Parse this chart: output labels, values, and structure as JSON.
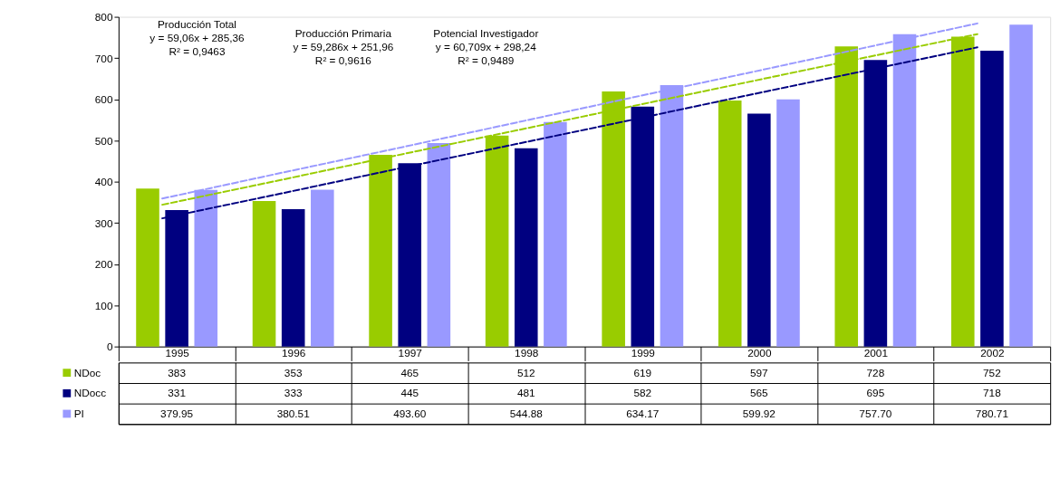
{
  "chart_data": {
    "type": "bar",
    "annotations": [
      "Producción Total\ny = 59,06x + 285,36\nR² = 0,9463",
      "Producción Primaria\ny = 59,286x + 251,96\nR² = 0,9616",
      "Potencial Investigador\ny = 60,709x + 298,24\nR² = 0,9489"
    ],
    "categories": [
      "1995",
      "1996",
      "1997",
      "1998",
      "1999",
      "2000",
      "2001",
      "2002"
    ],
    "series": [
      {
        "name": "NDoc",
        "color": "#99cc00",
        "values": [
          383,
          353,
          465,
          512,
          619,
          597,
          728,
          752
        ],
        "value_labels": [
          "383",
          "353",
          "465",
          "512",
          "619",
          "597",
          "728",
          "752"
        ]
      },
      {
        "name": "NDocc",
        "color": "#000080",
        "values": [
          331,
          333,
          445,
          481,
          582,
          565,
          695,
          718
        ],
        "value_labels": [
          "331",
          "333",
          "445",
          "481",
          "582",
          "565",
          "695",
          "718"
        ]
      },
      {
        "name": "PI",
        "color": "#9999ff",
        "values": [
          379.95,
          380.51,
          493.6,
          544.88,
          634.17,
          599.92,
          757.7,
          780.71
        ],
        "value_labels": [
          "379.95",
          "380.51",
          "493.60",
          "544.88",
          "634.17",
          "599.92",
          "757.70",
          "780.71"
        ]
      },
      {
        "type": "line",
        "color": "#99cc00",
        "values": [
          344,
          403,
          463,
          522,
          581,
          640,
          699,
          758
        ],
        "line_style": "dashed"
      },
      {
        "type": "line",
        "color": "#000080",
        "values": [
          311,
          370,
          430,
          489,
          548,
          608,
          667,
          726
        ],
        "line_style": "dashed"
      },
      {
        "type": "line",
        "color": "#9999ff",
        "values": [
          359,
          420,
          480,
          541,
          602,
          662,
          723,
          784
        ],
        "line_style": "dashed"
      }
    ],
    "ylim": [
      0,
      800
    ],
    "yticks": [
      0,
      100,
      200,
      300,
      400,
      500,
      600,
      700,
      800
    ],
    "grid": false,
    "legend": "bottom left"
  }
}
